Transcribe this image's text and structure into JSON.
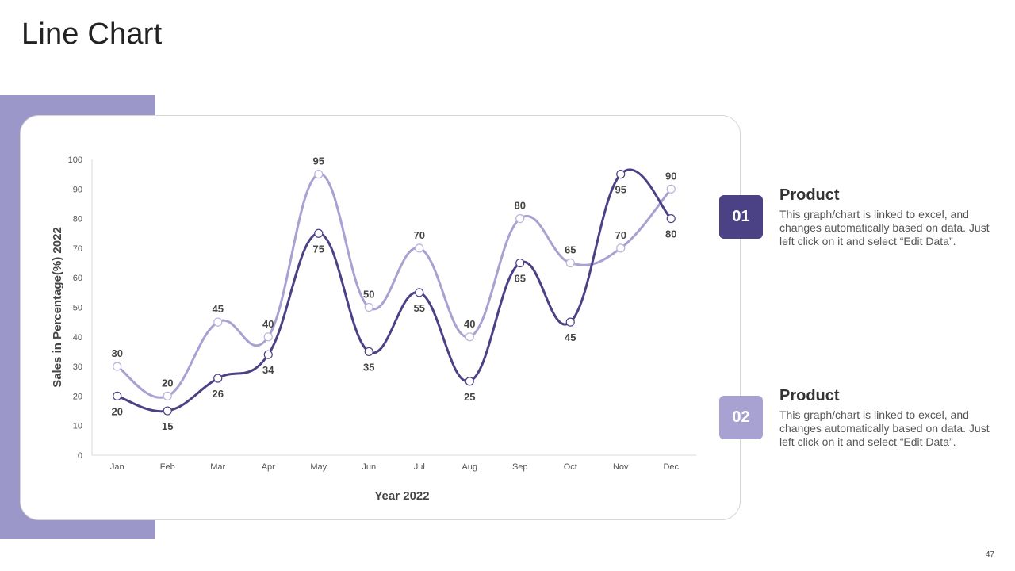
{
  "slide": {
    "title": "Line Chart",
    "page_number": "47"
  },
  "colors": {
    "accent": "#9c97c9",
    "series_dark": "#4a4285",
    "series_light": "#a7a2d2"
  },
  "legend": [
    {
      "number": "01",
      "title": "Product",
      "description": "This graph/chart is linked to excel, and changes automatically based on data. Just left click on it and select “Edit Data”.",
      "color": "#4a4285"
    },
    {
      "number": "02",
      "title": "Product",
      "description": "This graph/chart is linked to excel, and changes automatically based on data. Just left click on it and select “Edit Data”.",
      "color": "#a7a2d2"
    }
  ],
  "chart_data": {
    "type": "line",
    "title": "",
    "xlabel": "Year 2022",
    "ylabel": "Sales in Percentage(%) 2022",
    "ylim": [
      0,
      100
    ],
    "yticks": [
      0,
      10,
      20,
      30,
      40,
      50,
      60,
      70,
      80,
      90,
      100
    ],
    "categories": [
      "Jan",
      "Feb",
      "Mar",
      "Apr",
      "May",
      "Jun",
      "Jul",
      "Aug",
      "Sep",
      "Oct",
      "Nov",
      "Dec"
    ],
    "grid": false,
    "smooth": true,
    "series": [
      {
        "name": "Product 01",
        "color": "#4a4285",
        "values": [
          20,
          15,
          26,
          34,
          75,
          35,
          55,
          25,
          65,
          45,
          95,
          80
        ],
        "label_position": [
          "below",
          "below",
          "below",
          "below",
          "below",
          "below",
          "below",
          "below",
          "below",
          "below",
          "below",
          "below"
        ]
      },
      {
        "name": "Product 02",
        "color": "#a7a2d2",
        "values": [
          30,
          20,
          45,
          40,
          95,
          50,
          70,
          40,
          80,
          65,
          70,
          90
        ],
        "label_position": [
          "above",
          "above",
          "above",
          "above",
          "above",
          "above",
          "above",
          "above",
          "above",
          "above",
          "above",
          "above"
        ]
      }
    ]
  }
}
